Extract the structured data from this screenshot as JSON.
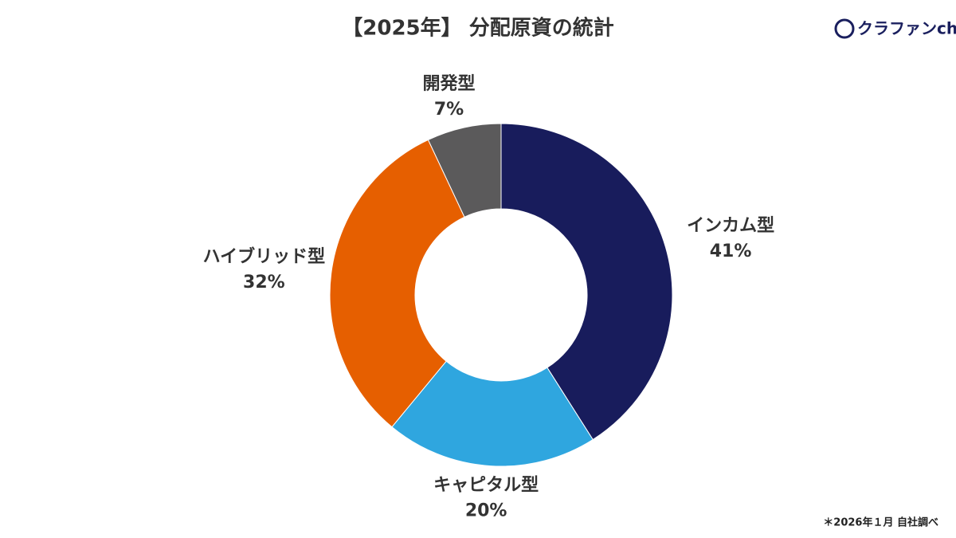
{
  "chart_data": {
    "type": "donut",
    "title": "【2025年】 分配原資の統計",
    "categories": [
      "インカム型",
      "キャピタル型",
      "ハイブリッド型",
      "開発型"
    ],
    "values": [
      41,
      20,
      32,
      7
    ],
    "value_labels": [
      "41%",
      "20%",
      "32%",
      "7%"
    ],
    "colors": [
      "#181c5c",
      "#2fa6df",
      "#e65f00",
      "#5b5a5b"
    ]
  },
  "logo": "クラファンch",
  "note": "＊2026年１月 自社調べ"
}
